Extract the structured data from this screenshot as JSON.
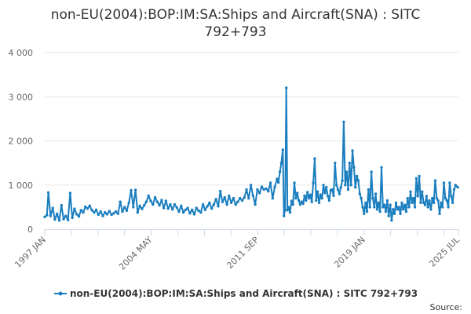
{
  "title_line1": "non-EU(2004):BOP:IM:SA:Ships and Aircraft(SNA) : SITC",
  "title_line2": "792+793",
  "legend_label": "non-EU(2004):BOP:IM:SA:Ships and Aircraft(SNA) : SITC 792+793",
  "source_label": "Source:",
  "colors": {
    "series": "#1a7ebf",
    "grid": "#e6e6e6",
    "axis": "#ccd6eb"
  },
  "chart_data": {
    "type": "line",
    "title": "non-EU(2004):BOP:IM:SA:Ships and Aircraft(SNA) : SITC 792+793",
    "xlabel": "",
    "ylabel": "",
    "xlim": [
      1997.0,
      2025.5
    ],
    "ylim": [
      0,
      4000
    ],
    "y_ticks": [
      {
        "value": 0,
        "label": "0"
      },
      {
        "value": 1000,
        "label": "1 000"
      },
      {
        "value": 2000,
        "label": "2 000"
      },
      {
        "value": 3000,
        "label": "3 000"
      },
      {
        "value": 4000,
        "label": "4 000"
      }
    ],
    "x_ticks": [
      {
        "value": 1997.0,
        "label": "1997 JAN"
      },
      {
        "value": 2004.33,
        "label": "2004 MAY"
      },
      {
        "value": 2011.67,
        "label": "2011 SEP"
      },
      {
        "value": 2019.0,
        "label": "2019 JAN"
      },
      {
        "value": 2025.5,
        "label": "2025 JUL"
      }
    ],
    "x_minor_ticks": [
      1998.83,
      2000.67,
      2002.5,
      2006.17,
      2008.0,
      2009.83,
      2013.5,
      2015.33,
      2017.17,
      2020.83,
      2022.67,
      2024.5
    ],
    "grid": true,
    "legend_position": "bottom",
    "series": [
      {
        "name": "non-EU(2004):BOP:IM:SA:Ships and Aircraft(SNA) : SITC 792+793",
        "points": [
          [
            1997.0,
            280
          ],
          [
            1997.15,
            320
          ],
          [
            1997.25,
            830
          ],
          [
            1997.4,
            300
          ],
          [
            1997.55,
            480
          ],
          [
            1997.7,
            220
          ],
          [
            1997.85,
            350
          ],
          [
            1998.0,
            200
          ],
          [
            1998.15,
            540
          ],
          [
            1998.3,
            230
          ],
          [
            1998.45,
            300
          ],
          [
            1998.6,
            210
          ],
          [
            1998.75,
            820
          ],
          [
            1998.9,
            260
          ],
          [
            1999.05,
            460
          ],
          [
            1999.2,
            340
          ],
          [
            1999.35,
            290
          ],
          [
            1999.5,
            430
          ],
          [
            1999.65,
            380
          ],
          [
            1999.8,
            510
          ],
          [
            1999.95,
            470
          ],
          [
            2000.1,
            530
          ],
          [
            2000.25,
            430
          ],
          [
            2000.4,
            380
          ],
          [
            2000.55,
            440
          ],
          [
            2000.7,
            330
          ],
          [
            2000.85,
            400
          ],
          [
            2001.0,
            300
          ],
          [
            2001.15,
            380
          ],
          [
            2001.3,
            340
          ],
          [
            2001.45,
            410
          ],
          [
            2001.6,
            330
          ],
          [
            2001.75,
            360
          ],
          [
            2001.9,
            400
          ],
          [
            2002.05,
            350
          ],
          [
            2002.2,
            620
          ],
          [
            2002.35,
            400
          ],
          [
            2002.5,
            500
          ],
          [
            2002.65,
            420
          ],
          [
            2002.8,
            600
          ],
          [
            2002.95,
            880
          ],
          [
            2003.1,
            500
          ],
          [
            2003.25,
            890
          ],
          [
            2003.4,
            380
          ],
          [
            2003.55,
            530
          ],
          [
            2003.7,
            460
          ],
          [
            2003.85,
            540
          ],
          [
            2004.0,
            620
          ],
          [
            2004.15,
            760
          ],
          [
            2004.3,
            640
          ],
          [
            2004.45,
            560
          ],
          [
            2004.6,
            720
          ],
          [
            2004.75,
            620
          ],
          [
            2004.9,
            540
          ],
          [
            2005.05,
            660
          ],
          [
            2005.2,
            480
          ],
          [
            2005.35,
            640
          ],
          [
            2005.5,
            470
          ],
          [
            2005.65,
            560
          ],
          [
            2005.8,
            450
          ],
          [
            2005.95,
            560
          ],
          [
            2006.1,
            490
          ],
          [
            2006.25,
            400
          ],
          [
            2006.4,
            530
          ],
          [
            2006.55,
            380
          ],
          [
            2006.7,
            440
          ],
          [
            2006.85,
            480
          ],
          [
            2007.0,
            360
          ],
          [
            2007.15,
            440
          ],
          [
            2007.3,
            340
          ],
          [
            2007.45,
            480
          ],
          [
            2007.6,
            420
          ],
          [
            2007.75,
            380
          ],
          [
            2007.9,
            560
          ],
          [
            2008.05,
            440
          ],
          [
            2008.2,
            520
          ],
          [
            2008.35,
            600
          ],
          [
            2008.5,
            470
          ],
          [
            2008.65,
            560
          ],
          [
            2008.8,
            680
          ],
          [
            2008.95,
            520
          ],
          [
            2009.1,
            860
          ],
          [
            2009.25,
            620
          ],
          [
            2009.4,
            720
          ],
          [
            2009.55,
            560
          ],
          [
            2009.7,
            760
          ],
          [
            2009.85,
            600
          ],
          [
            2010.0,
            700
          ],
          [
            2010.15,
            560
          ],
          [
            2010.3,
            620
          ],
          [
            2010.45,
            700
          ],
          [
            2010.6,
            650
          ],
          [
            2010.75,
            720
          ],
          [
            2010.9,
            900
          ],
          [
            2011.05,
            700
          ],
          [
            2011.2,
            1000
          ],
          [
            2011.35,
            760
          ],
          [
            2011.5,
            560
          ],
          [
            2011.65,
            900
          ],
          [
            2011.8,
            820
          ],
          [
            2011.95,
            960
          ],
          [
            2012.1,
            900
          ],
          [
            2012.25,
            920
          ],
          [
            2012.4,
            860
          ],
          [
            2012.55,
            1050
          ],
          [
            2012.7,
            700
          ],
          [
            2012.85,
            960
          ],
          [
            2013.0,
            1140
          ],
          [
            2013.1,
            1060
          ],
          [
            2013.2,
            1300
          ],
          [
            2013.3,
            1500
          ],
          [
            2013.4,
            1800
          ],
          [
            2013.48,
            300
          ],
          [
            2013.56,
            440
          ],
          [
            2013.64,
            3200
          ],
          [
            2013.72,
            430
          ],
          [
            2013.8,
            500
          ],
          [
            2013.9,
            380
          ],
          [
            2014.0,
            640
          ],
          [
            2014.1,
            560
          ],
          [
            2014.2,
            1050
          ],
          [
            2014.3,
            700
          ],
          [
            2014.4,
            820
          ],
          [
            2014.5,
            650
          ],
          [
            2014.6,
            560
          ],
          [
            2014.7,
            620
          ],
          [
            2014.8,
            580
          ],
          [
            2014.9,
            760
          ],
          [
            2015.0,
            650
          ],
          [
            2015.1,
            840
          ],
          [
            2015.2,
            700
          ],
          [
            2015.3,
            780
          ],
          [
            2015.4,
            620
          ],
          [
            2015.5,
            1050
          ],
          [
            2015.6,
            1600
          ],
          [
            2015.7,
            650
          ],
          [
            2015.8,
            850
          ],
          [
            2015.9,
            600
          ],
          [
            2016.0,
            780
          ],
          [
            2016.1,
            700
          ],
          [
            2016.2,
            1000
          ],
          [
            2016.3,
            820
          ],
          [
            2016.4,
            950
          ],
          [
            2016.5,
            750
          ],
          [
            2016.6,
            650
          ],
          [
            2016.7,
            880
          ],
          [
            2016.8,
            900
          ],
          [
            2016.9,
            760
          ],
          [
            2017.0,
            1500
          ],
          [
            2017.1,
            1000
          ],
          [
            2017.2,
            900
          ],
          [
            2017.3,
            800
          ],
          [
            2017.4,
            950
          ],
          [
            2017.5,
            1100
          ],
          [
            2017.6,
            2430
          ],
          [
            2017.7,
            1000
          ],
          [
            2017.8,
            1300
          ],
          [
            2017.9,
            900
          ],
          [
            2018.0,
            1500
          ],
          [
            2018.1,
            1000
          ],
          [
            2018.2,
            1780
          ],
          [
            2018.3,
            1400
          ],
          [
            2018.4,
            950
          ],
          [
            2018.5,
            1200
          ],
          [
            2018.6,
            1100
          ],
          [
            2018.7,
            800
          ],
          [
            2018.8,
            700
          ],
          [
            2018.9,
            500
          ],
          [
            2019.0,
            350
          ],
          [
            2019.1,
            600
          ],
          [
            2019.2,
            400
          ],
          [
            2019.3,
            900
          ],
          [
            2019.4,
            500
          ],
          [
            2019.5,
            1300
          ],
          [
            2019.6,
            700
          ],
          [
            2019.7,
            500
          ],
          [
            2019.8,
            800
          ],
          [
            2019.9,
            450
          ],
          [
            2020.0,
            600
          ],
          [
            2020.1,
            400
          ],
          [
            2020.2,
            1400
          ],
          [
            2020.3,
            500
          ],
          [
            2020.4,
            550
          ],
          [
            2020.5,
            400
          ],
          [
            2020.6,
            650
          ],
          [
            2020.7,
            300
          ],
          [
            2020.8,
            550
          ],
          [
            2020.9,
            200
          ],
          [
            2021.0,
            450
          ],
          [
            2021.1,
            350
          ],
          [
            2021.2,
            600
          ],
          [
            2021.3,
            450
          ],
          [
            2021.4,
            500
          ],
          [
            2021.5,
            350
          ],
          [
            2021.6,
            600
          ],
          [
            2021.7,
            450
          ],
          [
            2021.8,
            550
          ],
          [
            2021.9,
            400
          ],
          [
            2022.0,
            700
          ],
          [
            2022.1,
            500
          ],
          [
            2022.2,
            850
          ],
          [
            2022.3,
            600
          ],
          [
            2022.4,
            700
          ],
          [
            2022.5,
            500
          ],
          [
            2022.6,
            1150
          ],
          [
            2022.7,
            750
          ],
          [
            2022.8,
            1200
          ],
          [
            2022.9,
            600
          ],
          [
            2023.0,
            850
          ],
          [
            2023.1,
            600
          ],
          [
            2023.2,
            550
          ],
          [
            2023.3,
            750
          ],
          [
            2023.4,
            500
          ],
          [
            2023.5,
            650
          ],
          [
            2023.6,
            450
          ],
          [
            2023.7,
            700
          ],
          [
            2023.8,
            600
          ],
          [
            2023.9,
            1100
          ],
          [
            2024.0,
            700
          ],
          [
            2024.1,
            650
          ],
          [
            2024.2,
            350
          ],
          [
            2024.3,
            600
          ],
          [
            2024.4,
            500
          ],
          [
            2024.5,
            1050
          ],
          [
            2024.6,
            700
          ],
          [
            2024.7,
            650
          ],
          [
            2024.8,
            500
          ],
          [
            2024.9,
            1050
          ],
          [
            2025.0,
            750
          ],
          [
            2025.1,
            600
          ],
          [
            2025.2,
            900
          ],
          [
            2025.3,
            1000
          ],
          [
            2025.45,
            950
          ]
        ]
      }
    ]
  }
}
